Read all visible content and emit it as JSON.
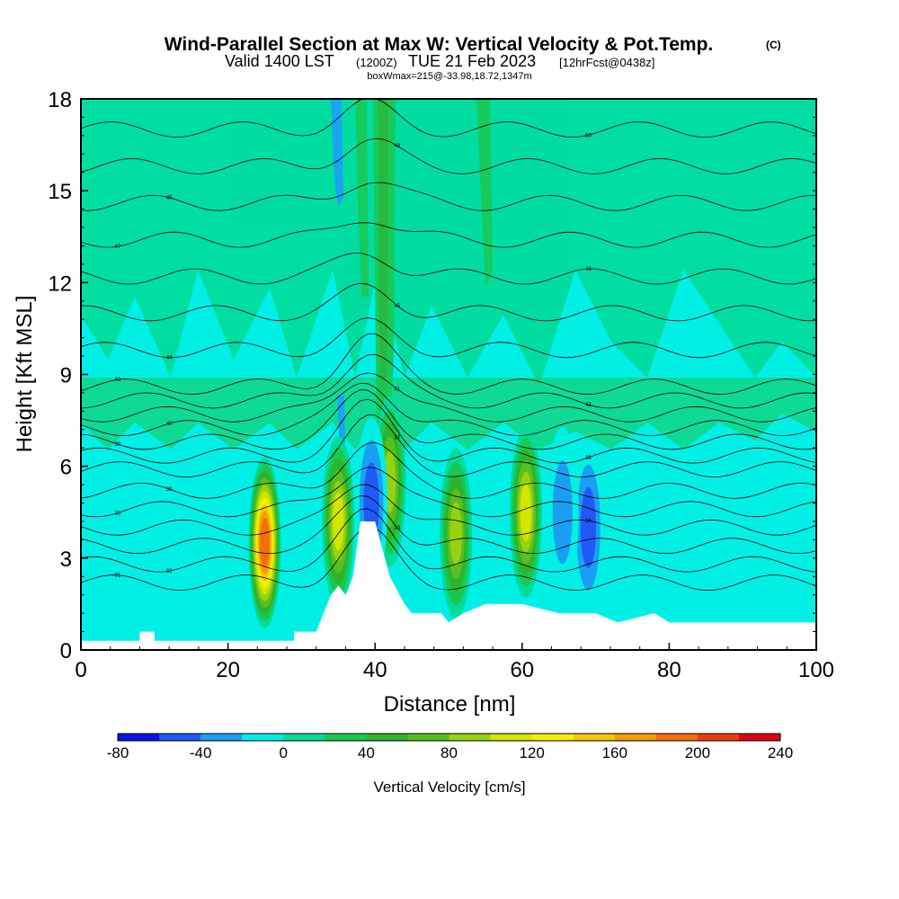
{
  "chart_data": {
    "type": "heatmap",
    "title": "Wind-Parallel Section at Max W: Vertical Velocity & Pot.Temp.",
    "title_mark": "(C)",
    "subtitle": {
      "valid_prefix": "Valid 1400 LST",
      "utc": "(1200Z)",
      "date": "TUE 21 Feb 2023",
      "forecast": "[12hrFcst@0438z]"
    },
    "box_note": "boxWmax=215@-33.98,18.72,1347m",
    "xlabel": "Distance [nm]",
    "ylabel": "Height [Kft MSL]",
    "xlim": [
      0,
      100
    ],
    "ylim": [
      0,
      18
    ],
    "x_ticks": [
      0,
      20,
      40,
      60,
      80,
      100
    ],
    "y_ticks": [
      0,
      3,
      6,
      9,
      12,
      15,
      18
    ],
    "colorbar": {
      "label": "Vertical Velocity [cm/s]",
      "tick_labels": [
        "-80",
        "-40",
        "0",
        "40",
        "80",
        "120",
        "160",
        "200",
        "240"
      ],
      "levels": [
        -80,
        -60,
        -40,
        -20,
        0,
        20,
        40,
        60,
        80,
        100,
        120,
        140,
        160,
        180,
        200,
        220,
        240
      ],
      "colors": [
        "#0a14e6",
        "#1e5af5",
        "#1aa0f2",
        "#00f0e6",
        "#00dc9a",
        "#19c850",
        "#2db42d",
        "#5abf1e",
        "#96d20f",
        "#d2e600",
        "#f5f000",
        "#f5c800",
        "#f59b00",
        "#f56e0a",
        "#eb3c0a",
        "#e10014"
      ]
    },
    "vertical_velocity_cells": [
      {
        "x": 25,
        "z": 3.5,
        "w": 215
      },
      {
        "x": 35,
        "z": 4.2,
        "w": 130
      },
      {
        "x": 42,
        "z": 5.5,
        "w": 100
      },
      {
        "x": 51,
        "z": 3.8,
        "w": 100
      },
      {
        "x": 60.5,
        "z": 4.5,
        "w": 125
      },
      {
        "x": 69,
        "z": 4.0,
        "w": -75
      },
      {
        "x": 65.5,
        "z": 4.5,
        "w": -40
      },
      {
        "x": 39.5,
        "z": 4.8,
        "w": -60
      }
    ],
    "terrain_kft": [
      [
        0,
        0.3
      ],
      [
        8,
        0.3
      ],
      [
        8,
        0.6
      ],
      [
        10,
        0.6
      ],
      [
        10,
        0.3
      ],
      [
        29,
        0.3
      ],
      [
        29,
        0.6
      ],
      [
        32,
        0.6
      ],
      [
        33,
        1.2
      ],
      [
        34,
        1.8
      ],
      [
        35,
        2.1
      ],
      [
        36,
        1.8
      ],
      [
        37,
        2.4
      ],
      [
        38,
        4.2
      ],
      [
        40,
        4.2
      ],
      [
        42,
        2.4
      ],
      [
        44,
        1.5
      ],
      [
        45,
        1.2
      ],
      [
        49,
        1.2
      ],
      [
        50,
        0.9
      ],
      [
        52,
        1.2
      ],
      [
        55,
        1.5
      ],
      [
        60,
        1.5
      ],
      [
        65,
        1.2
      ],
      [
        70,
        1.2
      ],
      [
        73,
        0.9
      ],
      [
        78,
        1.2
      ],
      [
        80,
        0.9
      ],
      [
        100,
        0.9
      ]
    ],
    "isentrope_labels": [
      "31",
      "32",
      "33",
      "34",
      "35",
      "36",
      "37",
      "38",
      "39",
      "40",
      "41",
      "42",
      "43",
      "44",
      "45",
      "46",
      "47",
      "48",
      "49",
      "50"
    ]
  }
}
